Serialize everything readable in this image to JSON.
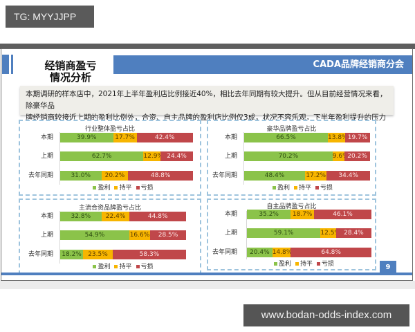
{
  "overlay": {
    "top_tag": "TG: MYYJJPP",
    "bottom_tag": "www.bodan-odds-index.com"
  },
  "slide": {
    "title_line1": "经销商盈亏",
    "title_line2": "情况分析",
    "header_text": "CADA品牌经销商分会",
    "summary_line1": "本期调研的样本店中，2021年上半年盈利店比例接近40%，相比去年同期有较大提升。但从目前经营情况来看，除豪华品",
    "summary_line2": "牌经销商较接近上期的盈利比例外，合资、自主品牌的盈利店比例仅3成，状况不容乐观，下半年盈利提升的压力巨大。",
    "page_number": "9",
    "colors": {
      "accent": "#4f7fbf",
      "profit": "#8bc34a",
      "even": "#f7b500",
      "loss": "#c0474a",
      "panel_border": "#9dc3dd"
    }
  },
  "legend": {
    "profit": "盈利",
    "even": "持平",
    "loss": "亏损"
  },
  "chart_data": [
    {
      "type": "bar",
      "stacked": true,
      "orientation": "horizontal",
      "title": "行业整体盈亏占比",
      "categories": [
        "本期",
        "上期",
        "去年同期"
      ],
      "series": [
        {
          "name": "盈利",
          "values": [
            39.9,
            62.7,
            31.0
          ],
          "labels": [
            "39.9%",
            "62.7%",
            "31.0%"
          ]
        },
        {
          "name": "持平",
          "values": [
            17.7,
            12.9,
            20.2
          ],
          "labels": [
            "17.7%",
            "12.9%",
            "20.2%"
          ]
        },
        {
          "name": "亏损",
          "values": [
            42.4,
            24.4,
            48.8
          ],
          "labels": [
            "42.4%",
            "24.4%",
            "48.8%"
          ]
        }
      ],
      "xlim": [
        0,
        100
      ],
      "legend_position": "bottom",
      "grid": false
    },
    {
      "type": "bar",
      "stacked": true,
      "orientation": "horizontal",
      "title": "豪华品牌盈亏占比",
      "categories": [
        "本期",
        "上期",
        "去年同期"
      ],
      "series": [
        {
          "name": "盈利",
          "values": [
            66.5,
            70.2,
            48.4
          ],
          "labels": [
            "66.5%",
            "70.2%",
            "48.4%"
          ]
        },
        {
          "name": "持平",
          "values": [
            13.8,
            9.6,
            17.2
          ],
          "labels": [
            "13.8%",
            "9.6%",
            "17.2%"
          ]
        },
        {
          "name": "亏损",
          "values": [
            19.7,
            20.2,
            34.4
          ],
          "labels": [
            "19.7%",
            "20.2%",
            "34.4%"
          ]
        }
      ],
      "xlim": [
        0,
        100
      ],
      "legend_position": "bottom",
      "grid": false
    },
    {
      "type": "bar",
      "stacked": true,
      "orientation": "horizontal",
      "title": "主流合资品牌盈亏占比",
      "categories": [
        "本期",
        "上期",
        "去年同期"
      ],
      "series": [
        {
          "name": "盈利",
          "values": [
            32.8,
            54.9,
            18.2
          ],
          "labels": [
            "32.8%",
            "54.9%",
            "18.2%"
          ]
        },
        {
          "name": "持平",
          "values": [
            22.4,
            16.6,
            23.5
          ],
          "labels": [
            "22.4%",
            "16.6%",
            "23.5%"
          ]
        },
        {
          "name": "亏损",
          "values": [
            44.8,
            28.5,
            58.3
          ],
          "labels": [
            "44.8%",
            "28.5%",
            "58.3%"
          ]
        }
      ],
      "xlim": [
        0,
        100
      ],
      "legend_position": "bottom",
      "grid": false
    },
    {
      "type": "bar",
      "stacked": true,
      "orientation": "horizontal",
      "title": "自主品牌盈亏占比",
      "categories": [
        "本期",
        "上期",
        "去年同期"
      ],
      "series": [
        {
          "name": "盈利",
          "values": [
            35.2,
            59.1,
            20.4
          ],
          "labels": [
            "35.2%",
            "59.1%",
            "20.4%"
          ]
        },
        {
          "name": "持平",
          "values": [
            18.7,
            12.5,
            14.8
          ],
          "labels": [
            "18.7%",
            "12.5%",
            "14.8%"
          ]
        },
        {
          "name": "亏损",
          "values": [
            46.1,
            28.4,
            64.8
          ],
          "labels": [
            "46.1%",
            "28.4%",
            "64.8%"
          ]
        }
      ],
      "xlim": [
        0,
        100
      ],
      "legend_position": "bottom",
      "grid": false
    }
  ]
}
